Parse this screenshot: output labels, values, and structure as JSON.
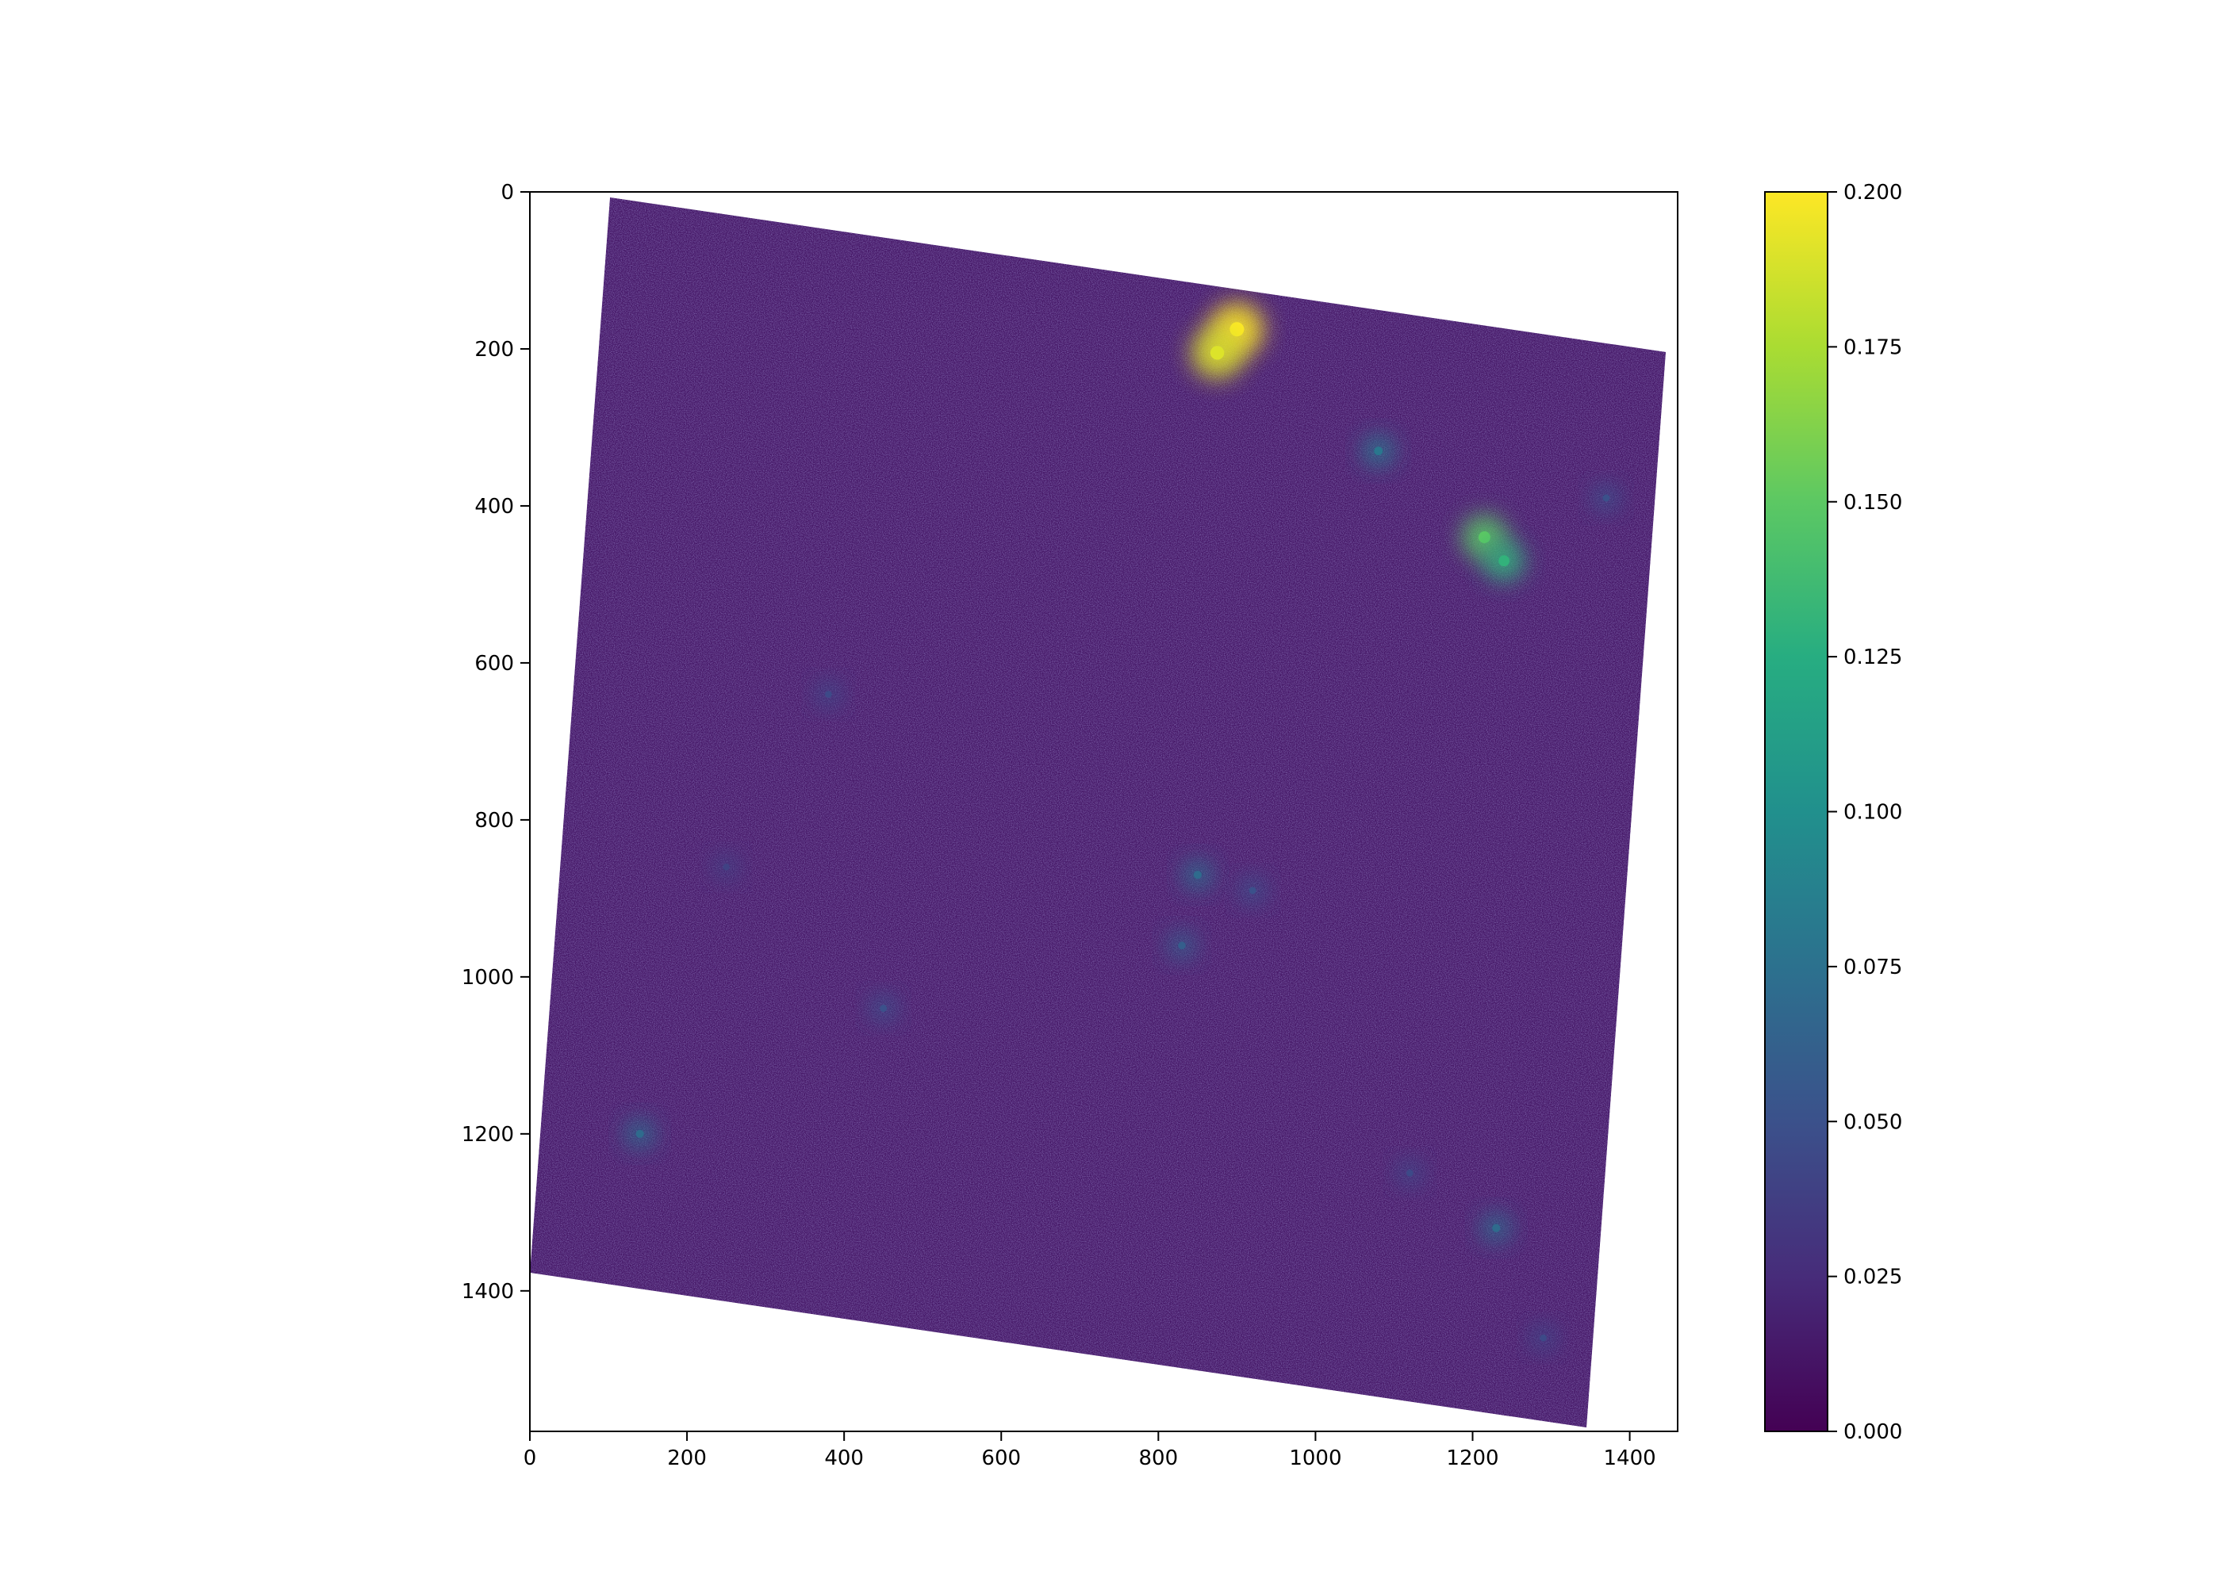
{
  "chart_data": {
    "type": "heatmap",
    "title": "",
    "xlabel": "",
    "ylabel": "",
    "xlim": [
      0,
      1461
    ],
    "ylim": [
      1579,
      0
    ],
    "x_ticks": [
      "0",
      "200",
      "400",
      "600",
      "800",
      "1000",
      "1200",
      "1400"
    ],
    "y_ticks": [
      "0",
      "200",
      "400",
      "600",
      "800",
      "1000",
      "1200",
      "1400"
    ],
    "x_tick_values": [
      0,
      200,
      400,
      600,
      800,
      1000,
      1200,
      1400
    ],
    "y_tick_values": [
      0,
      200,
      400,
      600,
      800,
      1000,
      1200,
      1400
    ],
    "image_footprint_corners": [
      [
        102,
        7
      ],
      [
        1446,
        204
      ],
      [
        1345,
        1574
      ],
      [
        0,
        1377
      ]
    ],
    "colormap": "viridis",
    "colorbar": {
      "range": [
        0.0,
        0.2
      ],
      "ticks": [
        "0.000",
        "0.025",
        "0.050",
        "0.075",
        "0.100",
        "0.125",
        "0.150",
        "0.175",
        "0.200"
      ],
      "tick_values": [
        0.0,
        0.025,
        0.05,
        0.075,
        0.1,
        0.125,
        0.15,
        0.175,
        0.2
      ]
    },
    "background_value": 0.012,
    "hotspots": [
      {
        "x": 900,
        "y": 175,
        "value": 0.2
      },
      {
        "x": 875,
        "y": 205,
        "value": 0.19
      },
      {
        "x": 1215,
        "y": 440,
        "value": 0.15
      },
      {
        "x": 1240,
        "y": 470,
        "value": 0.13
      },
      {
        "x": 1080,
        "y": 330,
        "value": 0.08
      },
      {
        "x": 850,
        "y": 870,
        "value": 0.07
      },
      {
        "x": 830,
        "y": 960,
        "value": 0.06
      },
      {
        "x": 920,
        "y": 890,
        "value": 0.05
      },
      {
        "x": 1230,
        "y": 1320,
        "value": 0.07
      },
      {
        "x": 140,
        "y": 1200,
        "value": 0.07
      },
      {
        "x": 450,
        "y": 1040,
        "value": 0.05
      },
      {
        "x": 1370,
        "y": 390,
        "value": 0.05
      },
      {
        "x": 380,
        "y": 640,
        "value": 0.045
      },
      {
        "x": 250,
        "y": 860,
        "value": 0.04
      },
      {
        "x": 1120,
        "y": 1250,
        "value": 0.045
      },
      {
        "x": 1290,
        "y": 1460,
        "value": 0.045
      }
    ]
  }
}
